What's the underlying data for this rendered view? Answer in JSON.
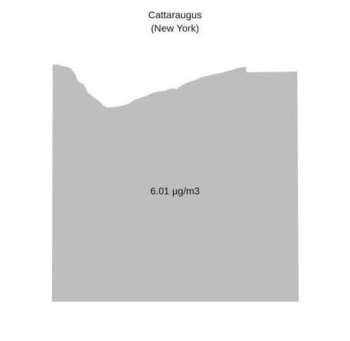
{
  "map": {
    "title": "Cattaraugus",
    "subtitle": "(New York)",
    "value_label": "6.01 µg/m3",
    "fill_color": "#bebebe",
    "background_color": "#ffffff"
  }
}
